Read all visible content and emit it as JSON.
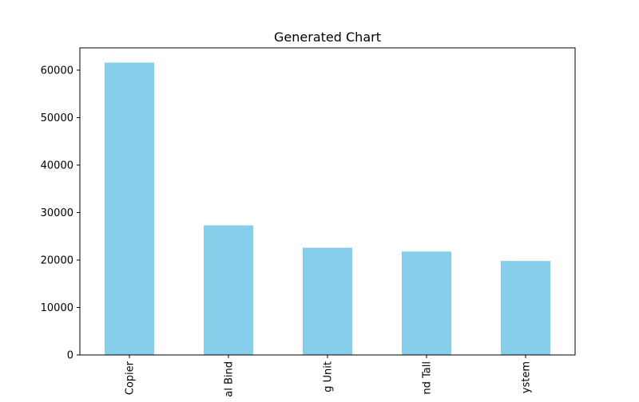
{
  "chart_data": {
    "type": "bar",
    "title": "Generated Chart",
    "categories": [
      "Copier",
      "al Bind",
      "g Unit",
      "nd Tall",
      "ystem"
    ],
    "values": [
      61600,
      27300,
      22600,
      21800,
      19800
    ],
    "ylim": [
      0,
      64700
    ],
    "yticks": [
      0,
      10000,
      20000,
      30000,
      40000,
      50000,
      60000
    ],
    "xlabel": "",
    "ylabel": "",
    "grid": false,
    "legend": false,
    "bar_color": "#87ceeb"
  }
}
